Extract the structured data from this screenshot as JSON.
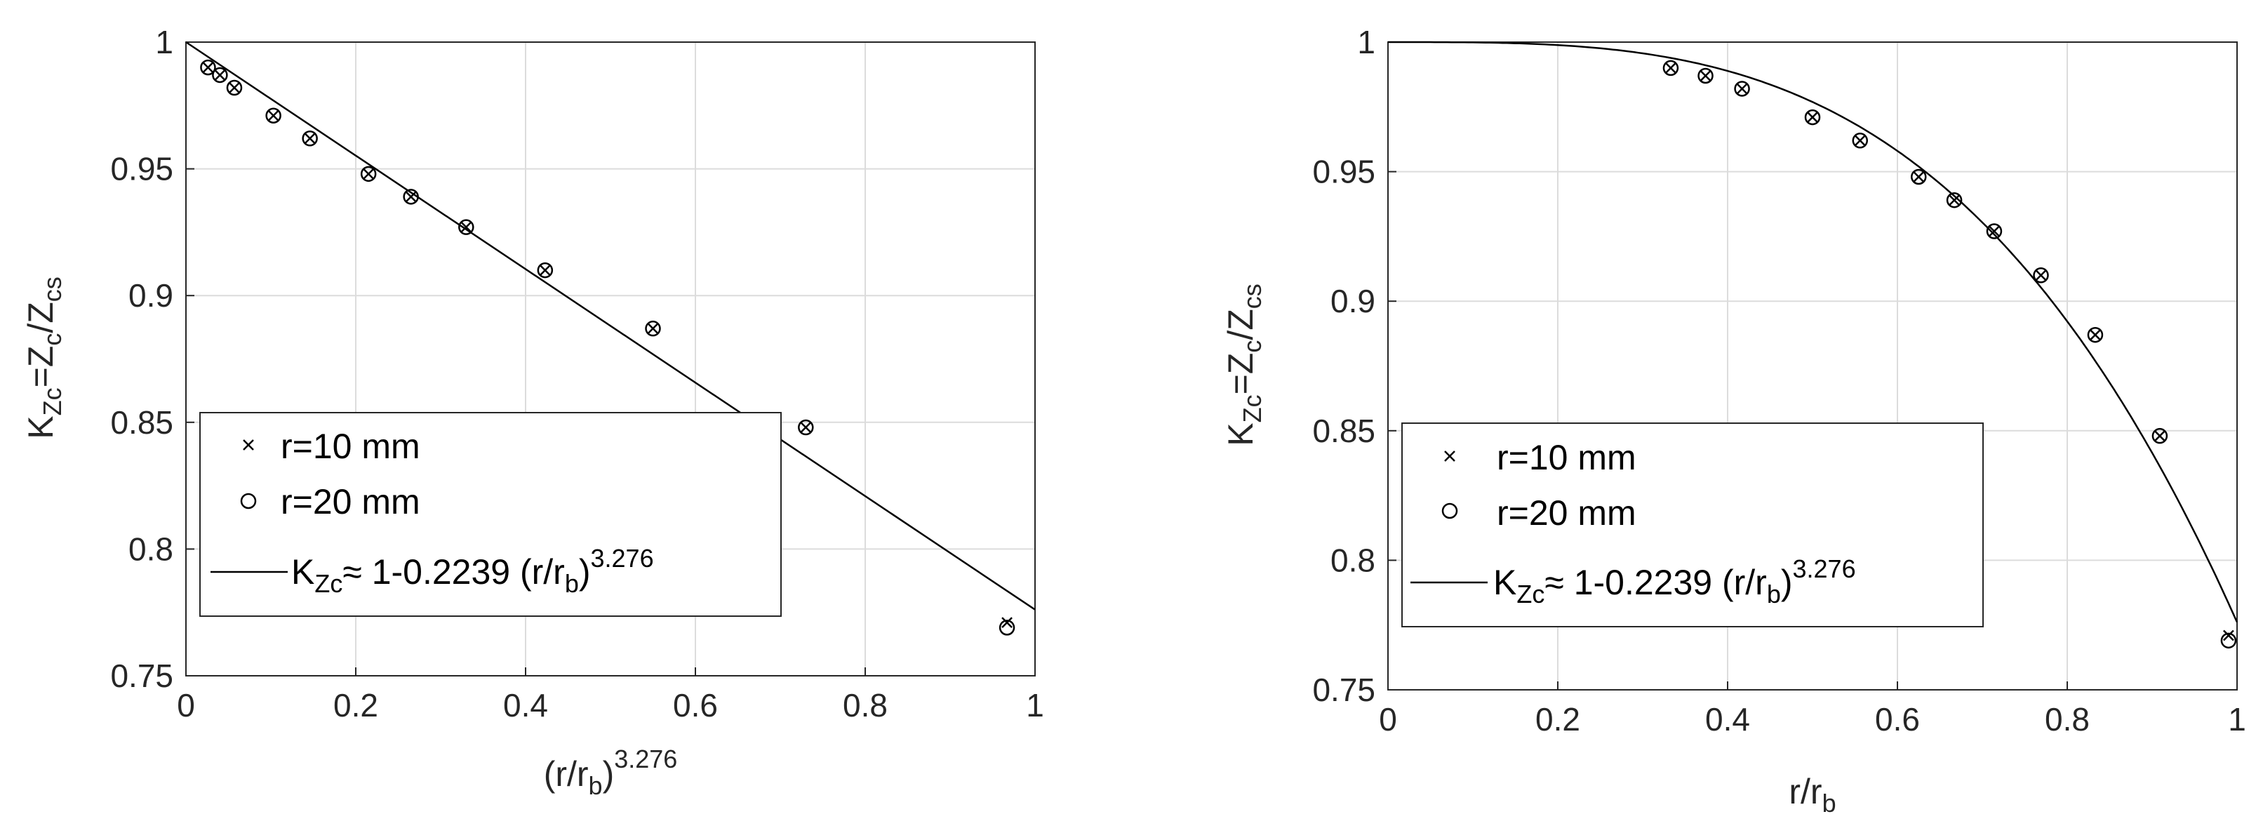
{
  "chart_data": [
    {
      "type": "scatter",
      "xlabel": {
        "base": "(r/r",
        "sub": "b",
        "close": ")",
        "sup": "3.276"
      },
      "ylabel": {
        "k": "K",
        "k_sub": "Zc",
        "eq": "=Z",
        "z_sub": "c",
        "slash": "/Z",
        "cs_sub": "cs"
      },
      "xlim": [
        0,
        1
      ],
      "ylim": [
        0.75,
        1
      ],
      "xticks": [
        0,
        0.2,
        0.4,
        0.6,
        0.8,
        1
      ],
      "xtick_labels": [
        "0",
        "0.2",
        "0.4",
        "0.6",
        "0.8",
        "1"
      ],
      "yticks": [
        0.75,
        0.8,
        0.85,
        0.9,
        0.95,
        1
      ],
      "ytick_labels": [
        "0.75",
        "0.8",
        "0.85",
        "0.9",
        "0.95",
        "1"
      ],
      "grid": true,
      "legend_position": "bottom-left",
      "series": [
        {
          "name": "r=10 mm",
          "marker": "x",
          "x": [
            0.026,
            0.04,
            0.057,
            0.103,
            0.146,
            0.215,
            0.265,
            0.33,
            0.423,
            0.55,
            0.73,
            0.967
          ],
          "y": [
            0.99,
            0.987,
            0.982,
            0.971,
            0.962,
            0.948,
            0.939,
            0.927,
            0.91,
            0.887,
            0.848,
            0.771
          ]
        },
        {
          "name": "r=20 mm",
          "marker": "o",
          "x": [
            0.026,
            0.04,
            0.057,
            0.103,
            0.146,
            0.215,
            0.265,
            0.33,
            0.423,
            0.55,
            0.73,
            0.967
          ],
          "y": [
            0.99,
            0.987,
            0.982,
            0.971,
            0.962,
            0.948,
            0.939,
            0.927,
            0.91,
            0.887,
            0.848,
            0.769
          ]
        },
        {
          "name": "fit",
          "type": "line",
          "x": [
            0,
            1
          ],
          "y": [
            1,
            0.7761
          ]
        }
      ],
      "legend": {
        "items": [
          "r=10 mm",
          "r=20 mm"
        ],
        "fit_label": {
          "k": "K",
          "k_sub": "Zc",
          "text": "≈ 1-0.2239 (r/r",
          "b_sub": "b",
          "close": ")",
          "sup": "3.276"
        }
      }
    },
    {
      "type": "scatter",
      "xlabel": {
        "base": "r/r",
        "sub": "b"
      },
      "ylabel": {
        "k": "K",
        "k_sub": "Zc",
        "eq": "=Z",
        "z_sub": "c",
        "slash": "/Z",
        "cs_sub": "cs"
      },
      "xlim": [
        0,
        1
      ],
      "ylim": [
        0.75,
        1
      ],
      "xticks": [
        0,
        0.2,
        0.4,
        0.6,
        0.8,
        1
      ],
      "xtick_labels": [
        "0",
        "0.2",
        "0.4",
        "0.6",
        "0.8",
        "1"
      ],
      "yticks": [
        0.75,
        0.8,
        0.85,
        0.9,
        0.95,
        1
      ],
      "ytick_labels": [
        "0.75",
        "0.8",
        "0.85",
        "0.9",
        "0.95",
        "1"
      ],
      "grid": true,
      "legend_position": "bottom-left",
      "series": [
        {
          "name": "r=10 mm",
          "marker": "x",
          "x": [
            0.333,
            0.374,
            0.417,
            0.5,
            0.556,
            0.625,
            0.667,
            0.714,
            0.769,
            0.833,
            0.909,
            0.99
          ],
          "y": [
            0.99,
            0.987,
            0.982,
            0.971,
            0.962,
            0.948,
            0.939,
            0.927,
            0.91,
            0.887,
            0.848,
            0.771
          ]
        },
        {
          "name": "r=20 mm",
          "marker": "o",
          "x": [
            0.333,
            0.374,
            0.417,
            0.5,
            0.556,
            0.625,
            0.667,
            0.714,
            0.769,
            0.833,
            0.909,
            0.99
          ],
          "y": [
            0.99,
            0.987,
            0.982,
            0.971,
            0.962,
            0.948,
            0.939,
            0.927,
            0.91,
            0.887,
            0.848,
            0.769
          ]
        },
        {
          "name": "fit",
          "type": "curve",
          "formula": "1-0.2239*x^3.276",
          "coef": 0.2239,
          "exponent": 3.276
        }
      ],
      "legend": {
        "items": [
          "r=10 mm",
          "r=20 mm"
        ],
        "fit_label": {
          "k": "K",
          "k_sub": "Zc",
          "text": "≈ 1-0.2239 (r/r",
          "b_sub": "b",
          "close": ")",
          "sup": "3.276"
        }
      }
    }
  ]
}
